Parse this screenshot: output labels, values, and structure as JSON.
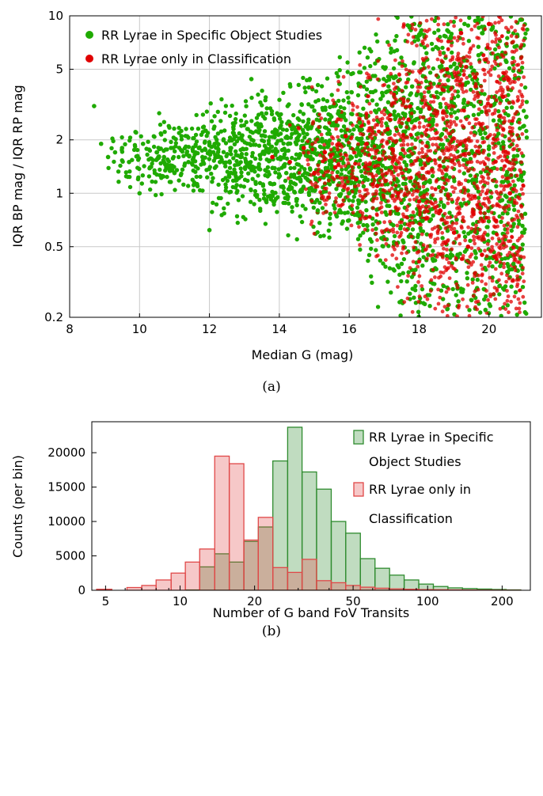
{
  "chart_data": [
    {
      "type": "scatter",
      "xlabel": "Median G (mag)",
      "ylabel": "IQR BP mag / IQR RP mag",
      "xlim": [
        8,
        21.5
      ],
      "ylim": [
        0.2,
        10
      ],
      "yscale": "log",
      "xticks": [
        8,
        10,
        12,
        14,
        16,
        18,
        20
      ],
      "yticks": [
        0.2,
        0.5,
        1,
        2,
        5,
        10
      ],
      "ytick_labels": [
        "0.2",
        "0.5",
        "1",
        "2",
        "5",
        "10"
      ],
      "grid": true,
      "legend_position": "top-left",
      "caption": "(a)",
      "series": [
        {
          "name": "RR Lyrae in Specific Object Studies",
          "color": "#1faa00",
          "points": [
            [
              8.7,
              3.1
            ],
            [
              8.9,
              1.9
            ],
            [
              9.1,
              1.6
            ],
            [
              9.3,
              1.7
            ],
            [
              9.5,
              1.8
            ],
            [
              9.7,
              1.5
            ],
            [
              9.9,
              2.2
            ],
            [
              10.0,
              1.0
            ],
            [
              10.1,
              1.9
            ],
            [
              10.3,
              1.4
            ],
            [
              10.5,
              1.7
            ],
            [
              10.7,
              1.6
            ],
            [
              10.9,
              1.8
            ],
            [
              11.0,
              1.3
            ],
            [
              11.2,
              2.1
            ],
            [
              11.4,
              1.5
            ],
            [
              11.6,
              1.7
            ],
            [
              11.8,
              1.6
            ],
            [
              12.0,
              1.9
            ],
            [
              12.0,
              0.62
            ],
            [
              12.3,
              1.5
            ],
            [
              12.6,
              1.8
            ],
            [
              12.9,
              1.6
            ],
            [
              13.1,
              2.3
            ],
            [
              13.2,
              4.4
            ],
            [
              13.4,
              1.4
            ],
            [
              13.7,
              1.9
            ],
            [
              13.9,
              1.7
            ],
            [
              14.2,
              1.3
            ],
            [
              14.5,
              2.2
            ],
            [
              14.8,
              1.2
            ],
            [
              15.1,
              0.8
            ],
            [
              15.4,
              1.9
            ],
            [
              15.7,
              2.9
            ],
            [
              16.0,
              1.0
            ],
            [
              16.3,
              2.5
            ],
            [
              16.6,
              0.55
            ],
            [
              16.9,
              3.4
            ],
            [
              17.2,
              1.4
            ],
            [
              17.5,
              0.4
            ],
            [
              17.8,
              4.0
            ],
            [
              18.1,
              0.7
            ],
            [
              18.4,
              2.6
            ],
            [
              18.7,
              0.3
            ],
            [
              18.9,
              7.5
            ],
            [
              19.1,
              0.45
            ],
            [
              19.3,
              9.0
            ],
            [
              19.5,
              0.25
            ],
            [
              19.7,
              6.0
            ],
            [
              19.9,
              0.22
            ],
            [
              20.1,
              8.5
            ],
            [
              20.3,
              0.3
            ],
            [
              20.5,
              5.5
            ],
            [
              20.7,
              0.4
            ],
            [
              20.9,
              9.5
            ],
            [
              21.0,
              0.6
            ]
          ]
        },
        {
          "name": "RR Lyrae only in Classification",
          "color": "#e00000",
          "points": [
            [
              13.8,
              1.6
            ],
            [
              14.3,
              1.5
            ],
            [
              14.7,
              1.8
            ],
            [
              15.0,
              1.3
            ],
            [
              15.3,
              1.7
            ],
            [
              15.6,
              1.4
            ],
            [
              15.9,
              2.1
            ],
            [
              16.2,
              1.2
            ],
            [
              16.5,
              1.9
            ],
            [
              16.8,
              1.1
            ],
            [
              17.1,
              2.3
            ],
            [
              17.4,
              1.0
            ],
            [
              17.7,
              2.6
            ],
            [
              18.0,
              0.9
            ],
            [
              18.3,
              3.0
            ],
            [
              18.6,
              0.8
            ],
            [
              18.8,
              5.0
            ],
            [
              19.0,
              0.6
            ],
            [
              19.2,
              8.0
            ],
            [
              19.4,
              0.5
            ],
            [
              19.6,
              4.5
            ],
            [
              19.8,
              0.45
            ],
            [
              20.0,
              9.0
            ],
            [
              20.2,
              0.7
            ],
            [
              20.4,
              3.5
            ],
            [
              20.6,
              1.0
            ]
          ]
        }
      ]
    },
    {
      "type": "bar",
      "xlabel": "Number of G band FoV Transits",
      "ylabel": "Counts (per bin)",
      "xscale": "log",
      "xlim": [
        4.4,
        260
      ],
      "ylim": [
        0,
        24500
      ],
      "xticks": [
        5,
        10,
        20,
        50,
        100,
        200
      ],
      "yticks": [
        0,
        5000,
        10000,
        15000,
        20000
      ],
      "grid": false,
      "legend_position": "top-right",
      "caption": "(b)",
      "bin_edges": [
        4.6,
        5.3,
        6.1,
        7.0,
        8.0,
        9.2,
        10.5,
        12.0,
        13.8,
        15.8,
        18.1,
        20.7,
        23.7,
        27.2,
        31.1,
        35.6,
        40.8,
        46.7,
        53.5,
        61.3,
        70.2,
        80.4,
        92.1,
        105.5,
        120.8,
        138.3,
        158.4,
        181.4,
        207.7,
        237.9
      ],
      "series": [
        {
          "name": "RR Lyrae in Specific Object Studies",
          "legend_lines": [
            "RR Lyrae in Specific",
            "Object Studies"
          ],
          "color": "#2e8b2e",
          "values": [
            0,
            0,
            0,
            0,
            0,
            0,
            50,
            3400,
            5300,
            4100,
            7100,
            9200,
            18800,
            23700,
            17200,
            14700,
            10000,
            8300,
            4600,
            3200,
            2200,
            1500,
            900,
            550,
            350,
            250,
            180,
            120,
            60
          ]
        },
        {
          "name": "RR Lyrae only in Classification",
          "legend_lines": [
            "RR Lyrae only in",
            "Classification"
          ],
          "color": "#e04848",
          "values": [
            150,
            0,
            400,
            700,
            1500,
            2500,
            4100,
            6000,
            19500,
            18400,
            7300,
            10600,
            3300,
            2600,
            4500,
            1400,
            1100,
            700,
            450,
            300,
            200,
            150,
            100,
            80,
            60,
            40,
            30,
            20,
            10
          ]
        }
      ]
    }
  ]
}
